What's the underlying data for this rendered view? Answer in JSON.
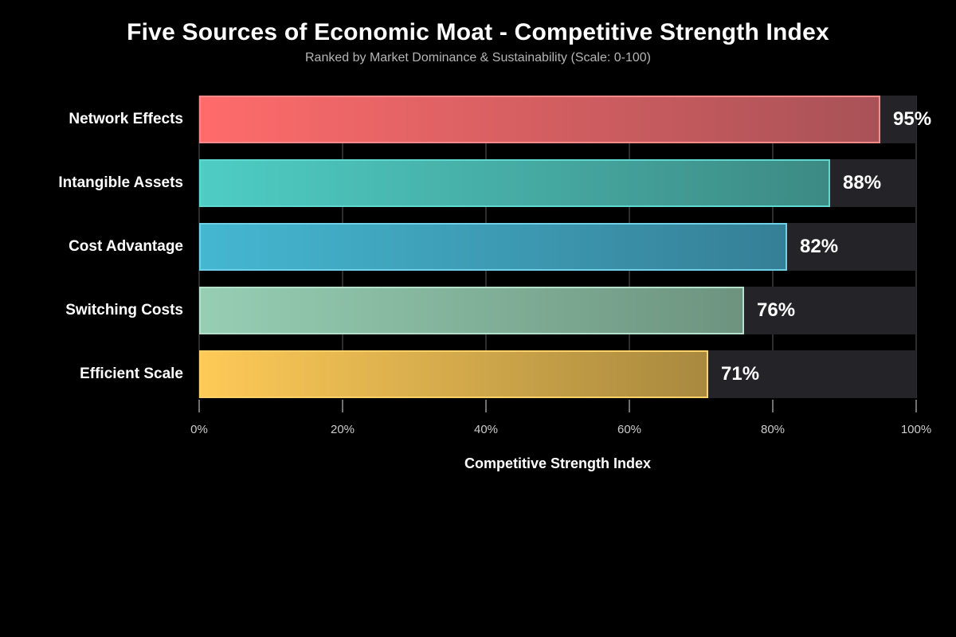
{
  "chart_data": {
    "type": "bar",
    "orientation": "horizontal",
    "title": "Five Sources of Economic Moat - Competitive Strength Index",
    "subtitle": "Ranked by Market Dominance & Sustainability (Scale: 0-100)",
    "xlabel": "Competitive Strength Index",
    "categories": [
      "Network Effects",
      "Intangible Assets",
      "Cost Advantage",
      "Switching Costs",
      "Efficient Scale"
    ],
    "values": [
      95,
      88,
      82,
      76,
      71
    ],
    "value_labels": [
      "95%",
      "88%",
      "82%",
      "76%",
      "71%"
    ],
    "xlim": [
      0,
      100
    ],
    "xtick_values": [
      0,
      20,
      40,
      60,
      80,
      100
    ],
    "xtick_labels": [
      "0%",
      "20%",
      "40%",
      "60%",
      "80%",
      "100%"
    ],
    "grid": "vertical",
    "background_color": "#000000",
    "track_color": "#242428",
    "bar_gradient_start": [
      "#ff6b6b",
      "#4ecdc4",
      "#45b7d1",
      "#96ceb4",
      "#feca57"
    ],
    "bar_gradient_end": [
      "#a85257",
      "#3d8a84",
      "#357f96",
      "#6d937f",
      "#a8893f"
    ],
    "bar_border_colors": [
      "#f98a8a",
      "#5fd9d0",
      "#6fd0e8",
      "#b4e0cb",
      "#ffd166"
    ]
  }
}
